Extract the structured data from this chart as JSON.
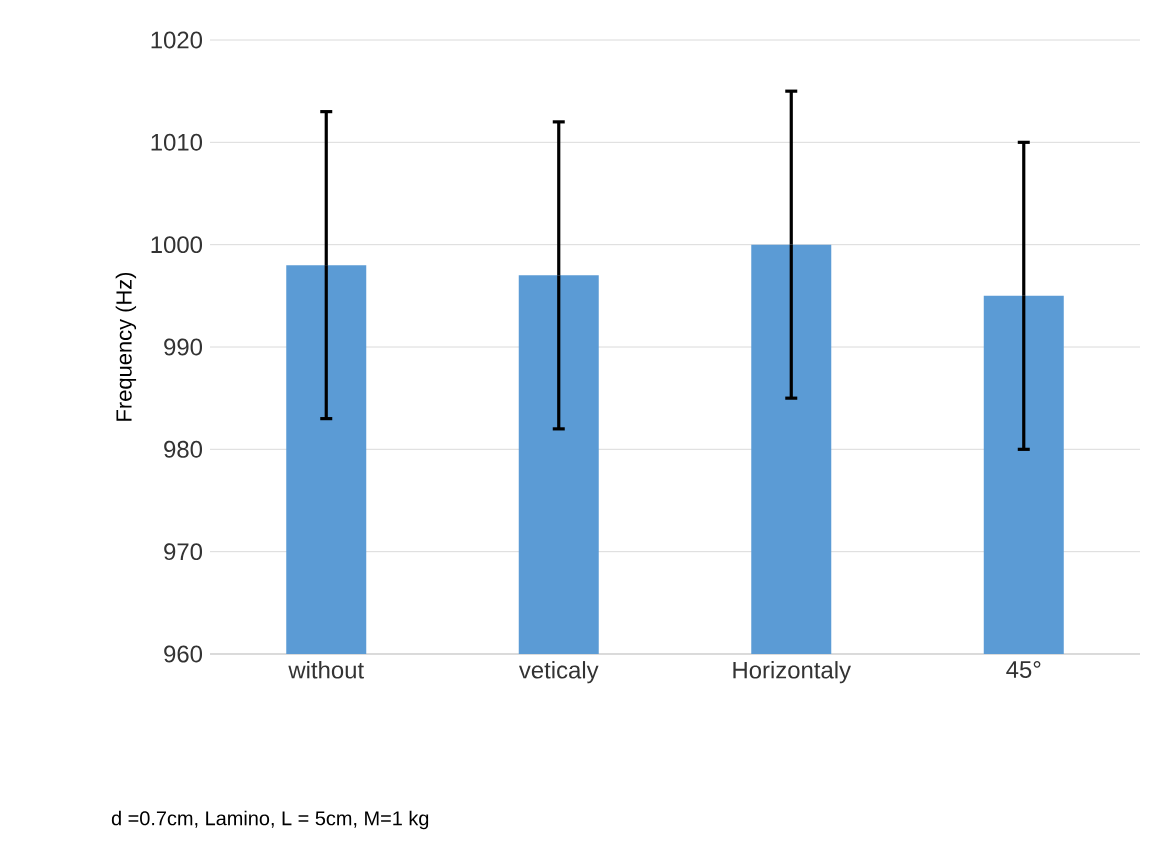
{
  "chart_data": {
    "type": "bar",
    "ylabel": "Frequency (Hz)",
    "categories": [
      "without",
      "veticaly",
      "Horizontaly",
      "45°"
    ],
    "values": [
      998,
      997,
      1000,
      995
    ],
    "errors": [
      15,
      15,
      15,
      15
    ],
    "color": "#5b9bd5",
    "ylim": [
      960,
      1020
    ],
    "yticks": [
      960,
      970,
      980,
      990,
      1000,
      1010,
      1020
    ],
    "grid": "y",
    "annotations": [
      "d =0.7cm, Lamino, L = 5cm, M=1 kg"
    ]
  }
}
